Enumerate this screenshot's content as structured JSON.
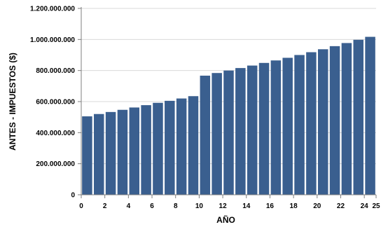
{
  "chart_data": {
    "type": "bar",
    "title": "",
    "xlabel": "AÑO",
    "ylabel": "ANTES - IMPUESTOS ($)",
    "x": [
      1,
      2,
      3,
      4,
      5,
      6,
      7,
      8,
      9,
      10,
      11,
      12,
      13,
      14,
      15,
      16,
      17,
      18,
      19,
      20,
      21,
      22,
      23,
      24,
      25
    ],
    "values": [
      505000000,
      520000000,
      533000000,
      547000000,
      562000000,
      577000000,
      592000000,
      605000000,
      620000000,
      635000000,
      767000000,
      784000000,
      800000000,
      816000000,
      832000000,
      849000000,
      865000000,
      882000000,
      900000000,
      918000000,
      937000000,
      957000000,
      977000000,
      998000000,
      1017000000
    ],
    "ylim": [
      0,
      1200000000
    ],
    "xlim": [
      0,
      25
    ],
    "yticks": [
      0,
      200000000,
      400000000,
      600000000,
      800000000,
      1000000000,
      1200000000
    ],
    "ytick_labels": [
      "0",
      "200.000.000",
      "400.000.000",
      "600.000.000",
      "800.000.000",
      "1.000.000.000",
      "1.200.000.000"
    ],
    "xticks": [
      0,
      2,
      4,
      6,
      8,
      10,
      12,
      14,
      16,
      18,
      20,
      22,
      24,
      25
    ],
    "xtick_labels": [
      "0",
      "2",
      "4",
      "6",
      "8",
      "10",
      "12",
      "14",
      "16",
      "18",
      "20",
      "22",
      "24",
      "25"
    ],
    "grid": "y",
    "legend": "none",
    "colors": {
      "bar": "#3a5f8f",
      "grid": "#d9d9d9",
      "axis": "#7f7f7f"
    }
  }
}
